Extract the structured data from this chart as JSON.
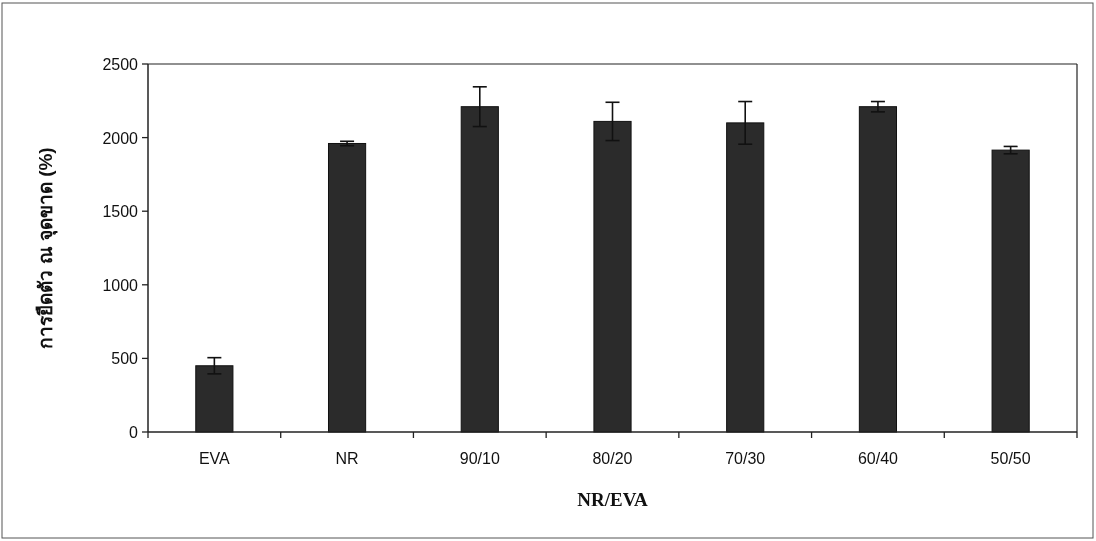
{
  "chart_data": {
    "type": "bar",
    "categories": [
      "EVA",
      "NR",
      "90/10",
      "80/20",
      "70/30",
      "60/40",
      "50/50"
    ],
    "values": [
      450,
      1960,
      2210,
      2110,
      2100,
      2210,
      1915
    ],
    "errors": [
      55,
      15,
      135,
      130,
      145,
      35,
      25
    ],
    "color": "#2b2b2b",
    "xlabel": "NR/EVA",
    "ylabel": "การยืดตัว ณ จุดขาด (%)",
    "ylim": [
      0,
      2500
    ],
    "yticks": [
      0,
      500,
      1000,
      1500,
      2000,
      2500
    ],
    "grid": false
  }
}
